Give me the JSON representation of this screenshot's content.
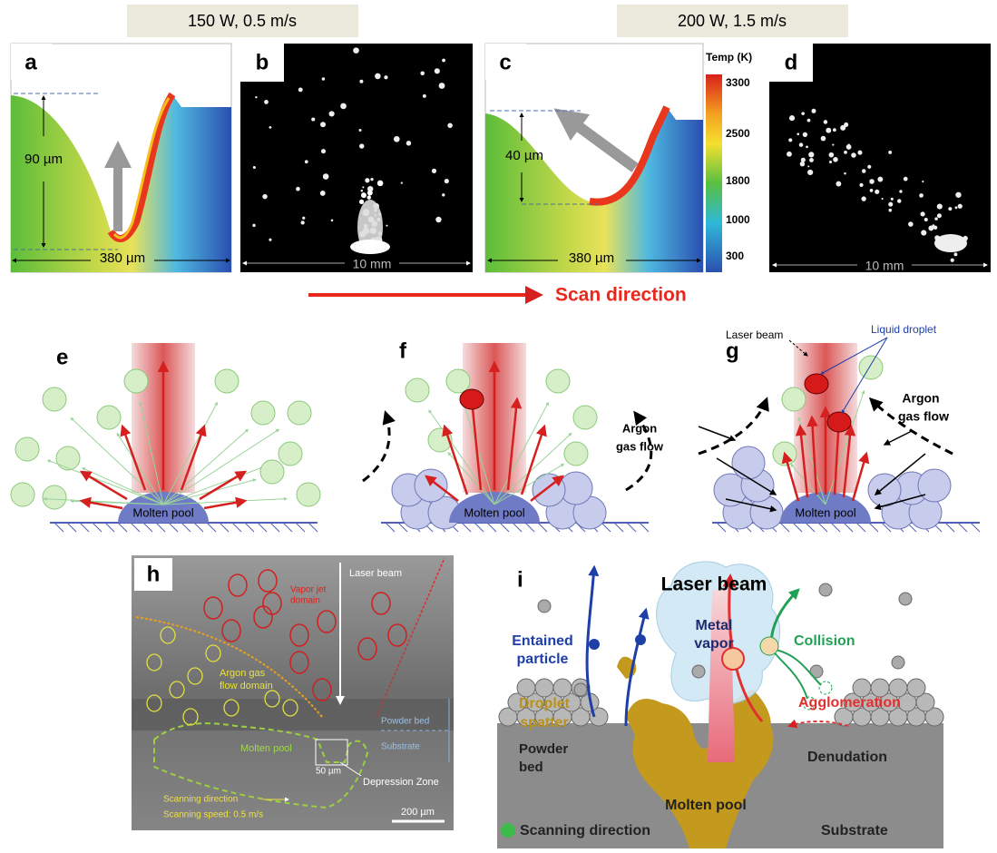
{
  "header": {
    "left": "150 W, 0.5 m/s",
    "right": "200 W, 1.5 m/s"
  },
  "panel_a": {
    "label": "a",
    "depth": "90 µm",
    "width": "380 µm"
  },
  "panel_b": {
    "label": "b",
    "scale": "10 mm"
  },
  "panel_c": {
    "label": "c",
    "depth": "40 µm",
    "width": "380 µm"
  },
  "colorbar": {
    "title": "Temp (K)",
    "ticks": [
      3300,
      2500,
      1800,
      1000,
      300
    ]
  },
  "panel_d": {
    "label": "d",
    "scale": "10 mm"
  },
  "scan_direction": "Scan direction",
  "panel_e": {
    "label": "e",
    "pool": "Molten pool"
  },
  "panel_f": {
    "label": "f",
    "pool": "Molten pool",
    "gas": [
      "Argon",
      "gas flow"
    ]
  },
  "panel_g": {
    "label": "g",
    "beam": "Laser beam",
    "droplet": "Liquid droplet",
    "gas": [
      "Argon",
      "gas flow"
    ],
    "pool": "Molten pool"
  },
  "panel_h": {
    "label": "h",
    "beam": "Laser beam",
    "vapor": [
      "Vapor jet",
      "domain"
    ],
    "argon": [
      "Argon gas",
      "flow domain"
    ],
    "powder": "Powder bed",
    "substrate": "Substrate",
    "pool": "Molten pool",
    "width": "50 µm",
    "zone": "Depression Zone",
    "direction": "Scanning direction",
    "speed": "Scanning speed: 0.5 m/s",
    "scale": "200 µm"
  },
  "panel_i": {
    "label": "i",
    "beam": "Laser beam",
    "entrained": [
      "Entained",
      "particle"
    ],
    "vapor": [
      "Metal",
      "vapor"
    ],
    "collision": "Collision",
    "spatter": [
      "Droplet",
      "spatter"
    ],
    "powder": [
      "Powder",
      "bed"
    ],
    "agglomeration": "Agglomeration",
    "denudation": "Denudation",
    "pool": "Molten pool",
    "direction": "Scanning direction",
    "substrate": "Substrate"
  }
}
